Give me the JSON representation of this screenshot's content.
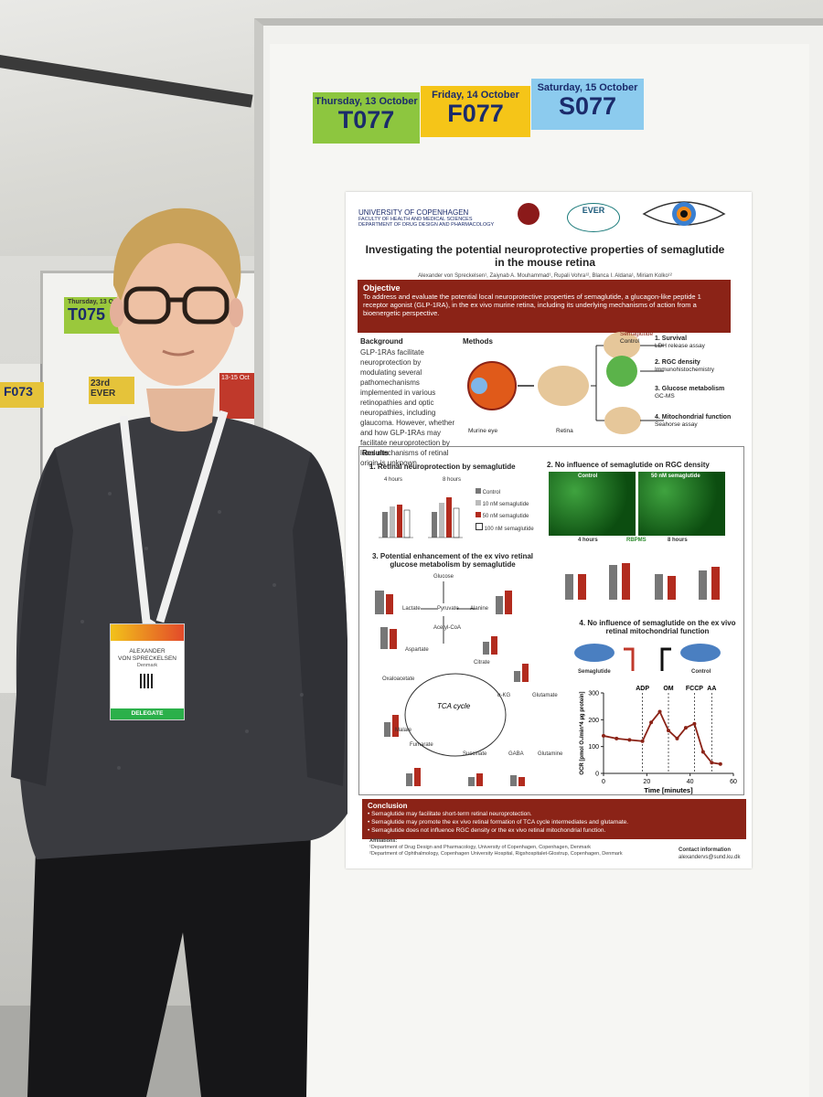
{
  "background_posters": {
    "board_1_number": "T075",
    "board_1_date": "Thursday, 13 Oct",
    "board_2_number": "F073",
    "eve_label": "23rd EVER",
    "red_label": "13-15 Oct"
  },
  "poster_numbers": [
    {
      "day": "Thursday, 13 October",
      "code": "T077",
      "color": "#8dc63f"
    },
    {
      "day": "Friday, 14 October",
      "code": "F077",
      "color": "#f5c518"
    },
    {
      "day": "Saturday, 15 October",
      "code": "S077",
      "color": "#8ccbee"
    }
  ],
  "poster": {
    "university": "UNIVERSITY OF COPENHAGEN",
    "faculty": "FACULTY OF HEALTH AND MEDICAL SCIENCES",
    "department": "DEPARTMENT OF DRUG DESIGN AND PHARMACOLOGY",
    "ever_logo": "EVER",
    "eye_logo": "eye-icon",
    "title": "Investigating the potential neuroprotective properties of semaglutide in the mouse retina",
    "authors": "Alexander von Spreckelsen¹, Zaiynab A. Mouhammad¹, Rupali Vohra¹², Blanca I. Aldana¹, Miriam Kolko¹²",
    "objective_heading": "Objective",
    "objective_text": "To address and evaluate the potential local neuroprotective properties of semaglutide, a glucagon-like peptide 1 receptor agonist (GLP-1RA), in the ex vivo murine retina, including its underlying mechanisms of action from a bioenergetic perspective.",
    "background_heading": "Background",
    "background_text": "GLP-1RAs facilitate neuroprotection by modulating several pathomechanisms implemented in various retinopathies and optic neuropathies, including glaucoma. However, whether and how GLP-1RAs may facilitate neuroprotection by local mechanisms of retinal origin is unknown.",
    "methods_heading": "Methods",
    "methods": {
      "eye_label": "Murine eye",
      "retina_label": "Retina",
      "semaglutide": "Semaglutide",
      "control": "Control",
      "steps": [
        {
          "title": "1. Survival",
          "sub": "LDH release assay"
        },
        {
          "title": "2. RGC density",
          "sub": "Immunohistochemistry"
        },
        {
          "title": "3. Glucose metabolism",
          "sub": "GC-MS"
        },
        {
          "title": "4. Mitochondrial function",
          "sub": "Seahorse assay"
        }
      ]
    },
    "results_heading": "Results",
    "results": {
      "r1_title": "1. Retinal neuroprotection by semaglutide",
      "r1_time_a": "4 hours",
      "r1_time_b": "8 hours",
      "r1_legend": [
        "Control",
        "10 nM semaglutide",
        "50 nM semaglutide",
        "100 nM semaglutide"
      ],
      "r2_title": "2. No influence of semaglutide on RGC density",
      "r2_control": "Control",
      "r2_sema": "50 nM semaglutide",
      "r2_time_a": "4 hours",
      "r2_marker": "RBPMS",
      "r2_time_b": "8 hours",
      "r3_title": "3. Potential enhancement of the ex vivo retinal glucose metabolism by semaglutide",
      "r3_nodes": [
        "Glucose",
        "Lactate",
        "Pyruvate",
        "Alanine",
        "Acetyl-CoA",
        "Aspartate",
        "Oxaloacetate",
        "Citrate",
        "TCA cycle",
        "α-KG",
        "Glutamate",
        "Malate",
        "Fumarate",
        "Succinate",
        "GABA",
        "Glutamine"
      ],
      "r4_title": "4. No influence of semaglutide on the ex vivo retinal mitochondrial function",
      "r4_sema": "Semaglutide",
      "r4_control": "Control",
      "r4_injections": [
        "ADP",
        "OM",
        "FCCP",
        "AA"
      ],
      "r4_ylabel": "OCR [pmol O₂/min*4 µg protein]",
      "r4_xlabel": "Time [minutes]"
    },
    "conclusion_heading": "Conclusion",
    "conclusion_points": [
      "Semaglutide may facilitate short-term retinal neuroprotection.",
      "Semaglutide may promote the ex vivo retinal formation of TCA cycle intermediates and glutamate.",
      "Semaglutide does not influence RGC density or the ex vivo retinal mitochondrial function."
    ],
    "affiliations_heading": "Affiliations:",
    "affiliations": [
      "¹Department of Drug Design and Pharmacology, University of Copenhagen, Copenhagen, Denmark",
      "²Department of Ophthalmology, Copenhagen University Hospital, Rigshospitalet-Glostrup, Copenhagen, Denmark"
    ],
    "contact_heading": "Contact information",
    "contact_email": "alexandervs@sund.ku.dk"
  },
  "chart_data": {
    "type": "line",
    "ylabel": "OCR [pmol O₂/min*4 µg protein]",
    "xlabel": "Time [minutes]",
    "xlim": [
      0,
      60
    ],
    "ylim": [
      0,
      300
    ],
    "xticks": [
      0,
      20,
      40,
      60
    ],
    "yticks": [
      0,
      100,
      200,
      300
    ],
    "series": [
      {
        "x": [
          0,
          6,
          12,
          18,
          22,
          26,
          30,
          34,
          38,
          42,
          46,
          50,
          54
        ],
        "values": [
          140,
          130,
          125,
          120,
          190,
          230,
          160,
          130,
          170,
          185,
          80,
          40,
          35
        ],
        "color": "#8b2317"
      }
    ]
  },
  "badge": {
    "name_line1": "ALEXANDER",
    "name_line2": "VON SPRECKELSEN",
    "country": "Denmark",
    "role": "DELEGATE"
  }
}
